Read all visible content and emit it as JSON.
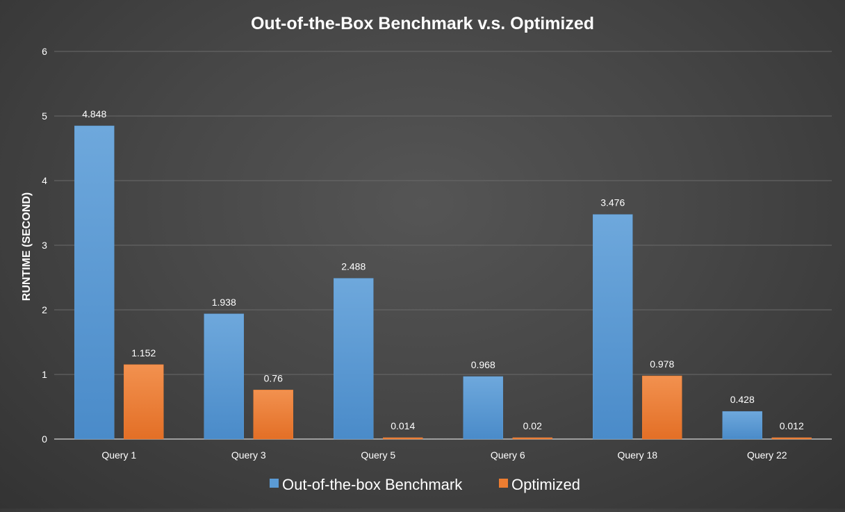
{
  "chart_data": {
    "type": "bar",
    "title": "Out-of-the-Box Benchmark v.s. Optimized",
    "xlabel": "",
    "ylabel": "RUNTIME (SECOND)",
    "categories": [
      "Query 1",
      "Query 3",
      "Query 5",
      "Query 6",
      "Query 18",
      "Query 22"
    ],
    "series": [
      {
        "name": "Out-of-the-box Benchmark",
        "values": [
          4.848,
          1.938,
          2.488,
          0.968,
          3.476,
          0.428
        ],
        "labels": [
          "4.848",
          "1.938",
          "2.488",
          "0.968",
          "3.476",
          "0.428"
        ],
        "color": "#5B9BD5"
      },
      {
        "name": "Optimized",
        "values": [
          1.152,
          0.76,
          0.014,
          0.02,
          0.978,
          0.012
        ],
        "labels": [
          "1.152",
          "0.76",
          "0.014",
          "0.02",
          "0.978",
          "0.012"
        ],
        "color": "#ED7D31"
      }
    ],
    "ylim": [
      0,
      6
    ],
    "yticks": [
      "0",
      "1",
      "2",
      "3",
      "4",
      "5",
      "6"
    ],
    "grid": true,
    "legend": "bottom",
    "colors": {
      "background": "#404040",
      "gridline": "#6a6a6a",
      "text": "#ffffff"
    }
  }
}
